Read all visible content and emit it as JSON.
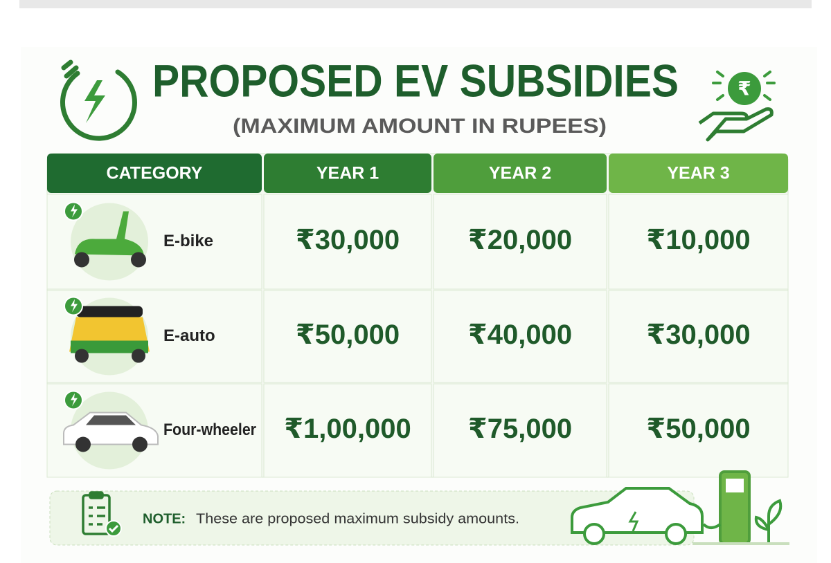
{
  "header": {
    "title": "PROPOSED EV SUBSIDIES",
    "subtitle": "(MAXIMUM AMOUNT IN RUPEES)"
  },
  "table": {
    "columns": [
      "CATEGORY",
      "YEAR 1",
      "YEAR 2",
      "YEAR 3"
    ],
    "rows": [
      [
        "E-bike",
        "₹30,000",
        "₹20,000",
        "₹10,000"
      ],
      [
        "E-auto",
        "₹50,000",
        "₹40,000",
        "₹30,000"
      ],
      [
        "Four-wheeler",
        "₹1,00,000",
        "₹75,000",
        "₹50,000"
      ]
    ]
  },
  "note": {
    "label": "NOTE:",
    "text": "These are proposed maximum subsidy amounts."
  }
}
